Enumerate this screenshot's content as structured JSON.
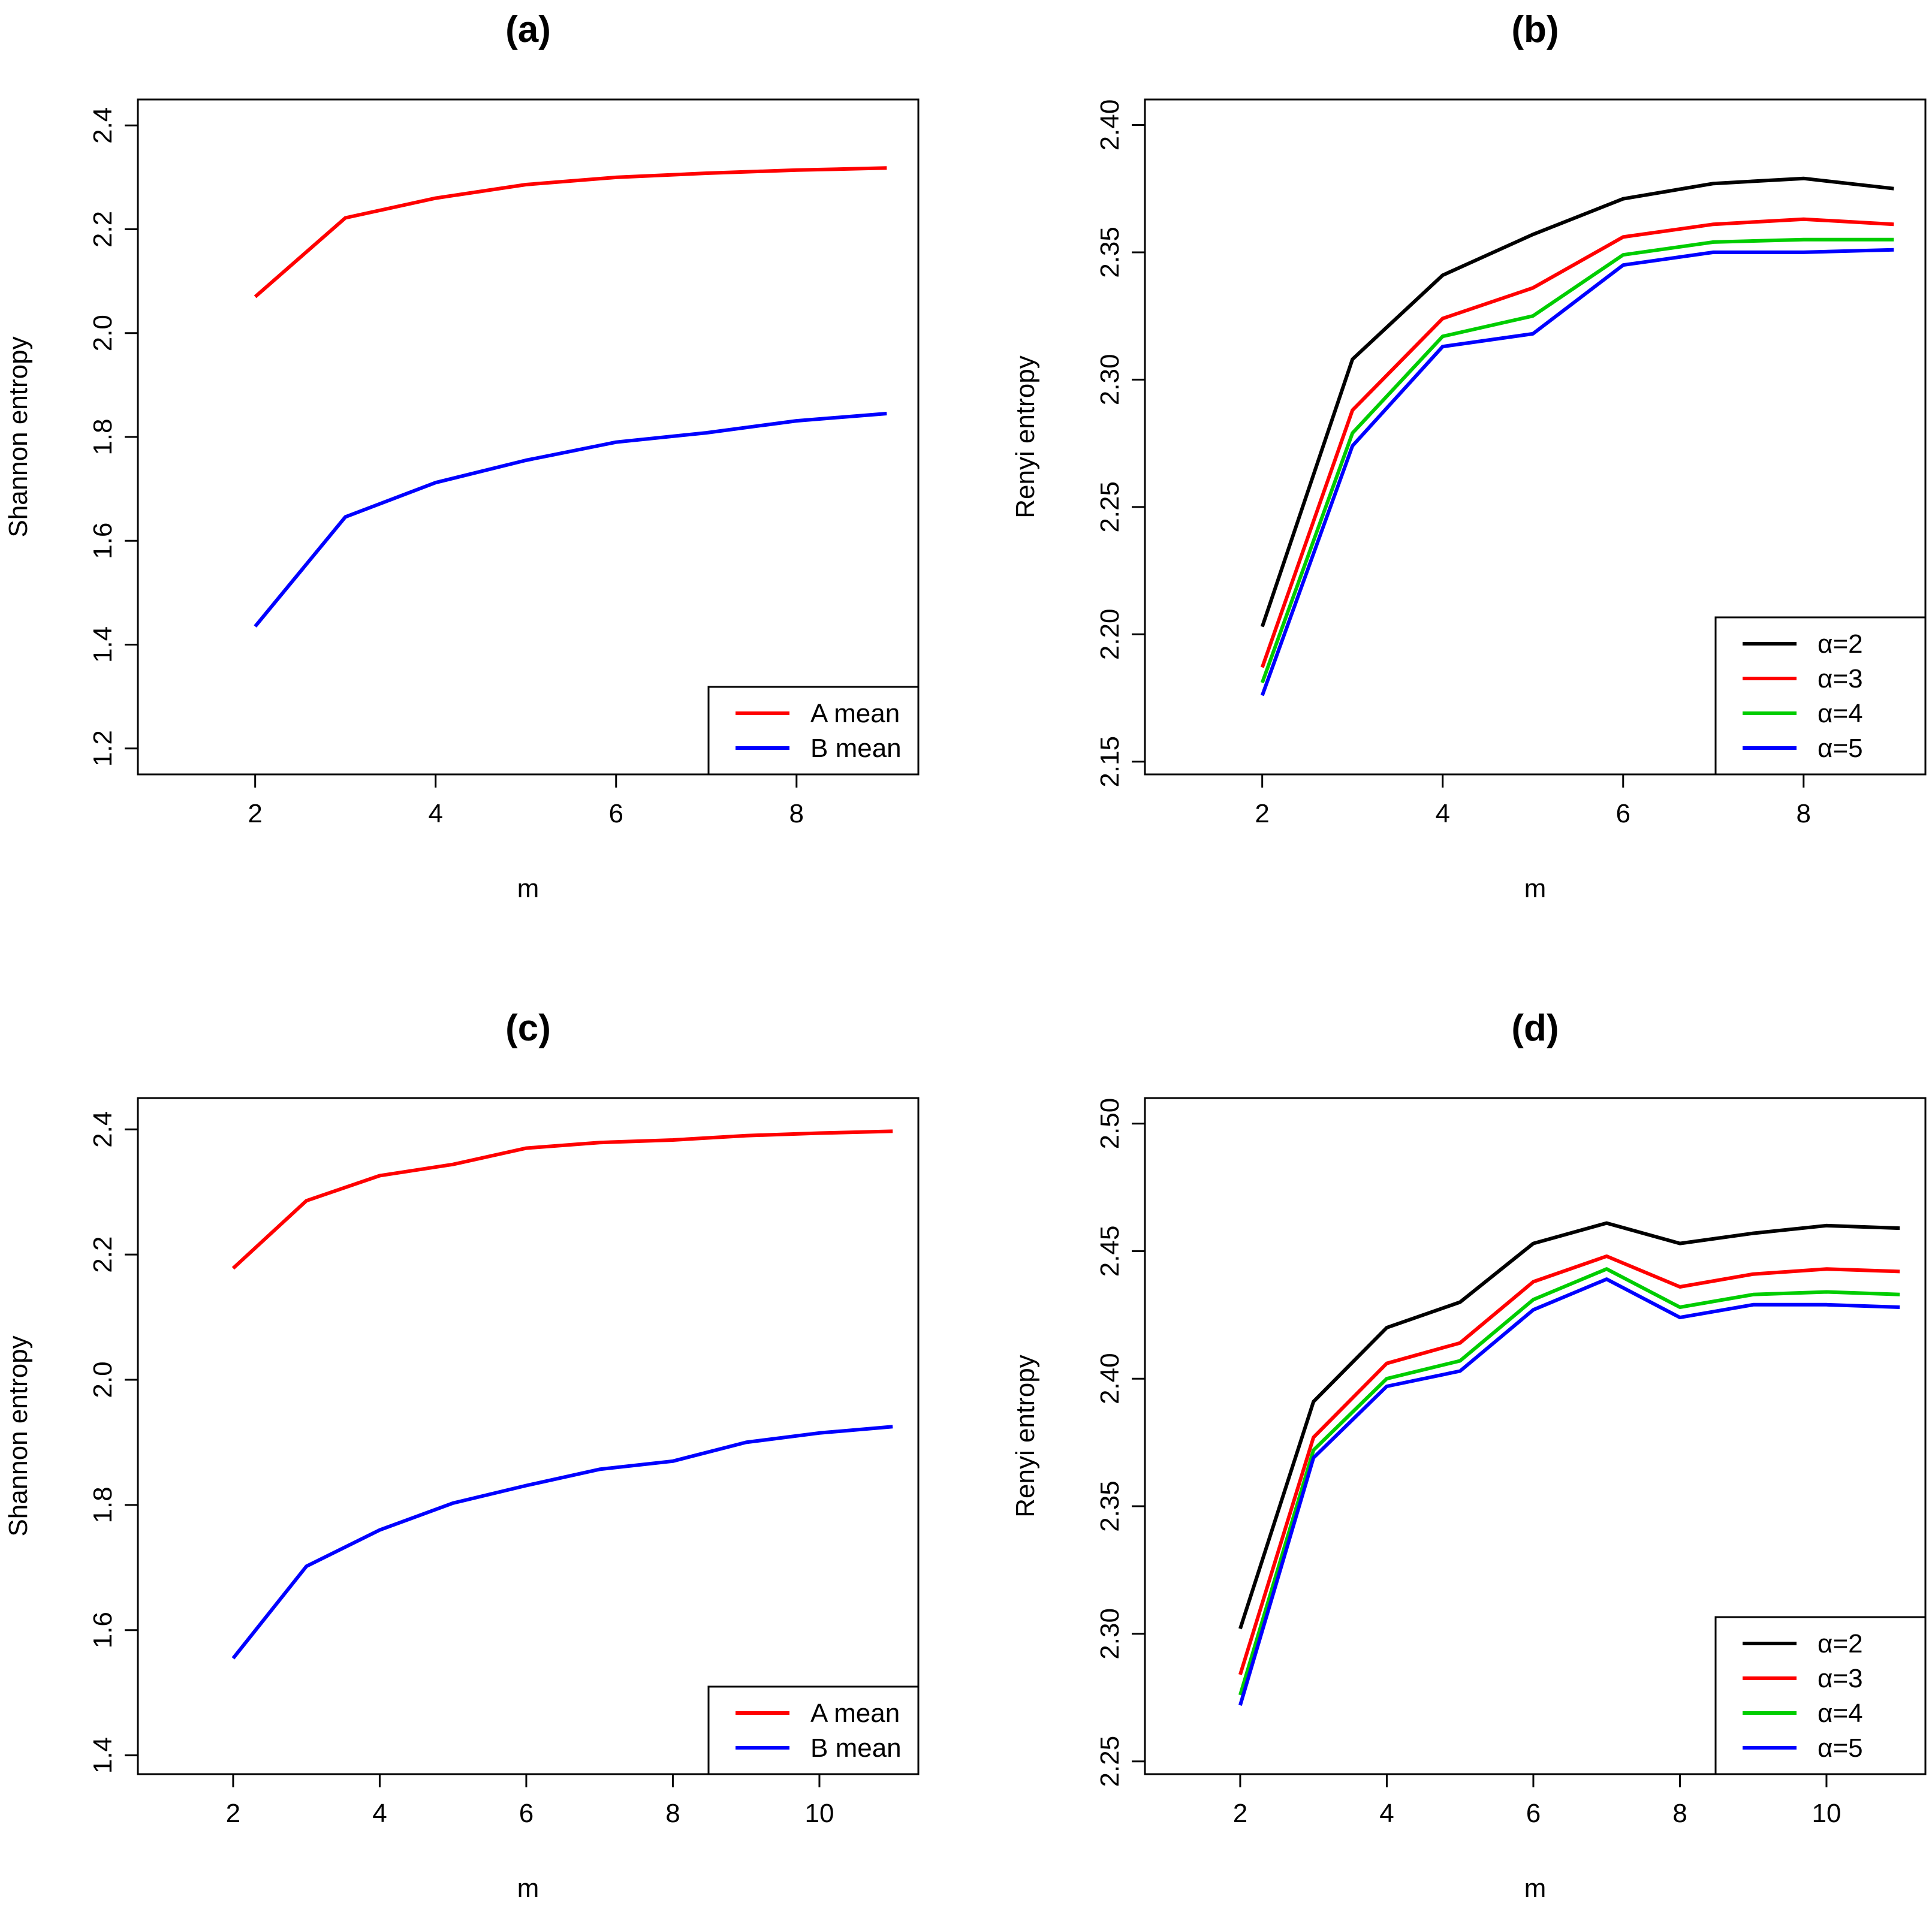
{
  "chart_data": [
    {
      "type": "line",
      "title": "(a)",
      "xlabel": "m",
      "ylabel": "Shannon entropy",
      "xlim": [
        0.7,
        9.35
      ],
      "ylim": [
        1.15,
        2.45
      ],
      "xticks": [
        2,
        4,
        6,
        8
      ],
      "yticks": [
        1.2,
        1.4,
        1.6,
        1.8,
        2.0,
        2.2,
        2.4
      ],
      "ytick_labels": [
        "1.2",
        "1.4",
        "1.6",
        "1.8",
        "2.0",
        "2.2",
        "2.4"
      ],
      "grid": false,
      "legend_position": "bottom-right",
      "x": [
        2,
        3,
        4,
        5,
        6,
        7,
        8,
        9
      ],
      "series": [
        {
          "name": "A mean",
          "color": "#ff0000",
          "values": [
            2.07,
            2.222,
            2.26,
            2.286,
            2.3,
            2.308,
            2.314,
            2.318
          ]
        },
        {
          "name": "B mean",
          "color": "#0000ff",
          "values": [
            1.435,
            1.646,
            1.712,
            1.755,
            1.79,
            1.808,
            1.831,
            1.845
          ]
        }
      ]
    },
    {
      "type": "line",
      "title": "(b)",
      "xlabel": "m",
      "ylabel": "Renyi entropy",
      "xlim": [
        0.7,
        9.35
      ],
      "ylim": [
        2.145,
        2.41
      ],
      "xticks": [
        2,
        4,
        6,
        8
      ],
      "yticks": [
        2.15,
        2.2,
        2.25,
        2.3,
        2.35,
        2.4
      ],
      "ytick_labels": [
        "2.15",
        "2.20",
        "2.25",
        "2.30",
        "2.35",
        "2.40"
      ],
      "grid": false,
      "legend_position": "bottom-right",
      "x": [
        2,
        3,
        4,
        5,
        6,
        7,
        8,
        9
      ],
      "series": [
        {
          "name": "α=2",
          "color": "#000000",
          "values": [
            2.203,
            2.308,
            2.341,
            2.357,
            2.371,
            2.377,
            2.379,
            2.375
          ]
        },
        {
          "name": "α=3",
          "color": "#ff0000",
          "values": [
            2.187,
            2.288,
            2.324,
            2.336,
            2.356,
            2.361,
            2.363,
            2.361
          ]
        },
        {
          "name": "α=4",
          "color": "#00cd00",
          "values": [
            2.181,
            2.279,
            2.317,
            2.325,
            2.349,
            2.354,
            2.355,
            2.355
          ]
        },
        {
          "name": "α=5",
          "color": "#0000ff",
          "values": [
            2.176,
            2.274,
            2.313,
            2.318,
            2.345,
            2.35,
            2.35,
            2.351
          ]
        }
      ]
    },
    {
      "type": "line",
      "title": "(c)",
      "xlabel": "m",
      "ylabel": "Shannon entropy",
      "xlim": [
        0.7,
        11.35
      ],
      "ylim": [
        1.37,
        2.45
      ],
      "xticks": [
        2,
        4,
        6,
        8,
        10
      ],
      "yticks": [
        1.4,
        1.6,
        1.8,
        2.0,
        2.2,
        2.4
      ],
      "ytick_labels": [
        "1.4",
        "1.6",
        "1.8",
        "2.0",
        "2.2",
        "2.4"
      ],
      "grid": false,
      "legend_position": "bottom-right",
      "x": [
        2,
        3,
        4,
        5,
        6,
        7,
        8,
        9,
        10,
        11
      ],
      "series": [
        {
          "name": "A mean",
          "color": "#ff0000",
          "values": [
            2.178,
            2.286,
            2.326,
            2.344,
            2.37,
            2.379,
            2.383,
            2.39,
            2.394,
            2.397
          ]
        },
        {
          "name": "B mean",
          "color": "#0000ff",
          "values": [
            1.555,
            1.702,
            1.76,
            1.803,
            1.831,
            1.857,
            1.87,
            1.9,
            1.915,
            1.925
          ]
        }
      ]
    },
    {
      "type": "line",
      "title": "(d)",
      "xlabel": "m",
      "ylabel": "Renyi entropy",
      "xlim": [
        0.7,
        11.35
      ],
      "ylim": [
        2.245,
        2.51
      ],
      "xticks": [
        2,
        4,
        6,
        8,
        10
      ],
      "yticks": [
        2.25,
        2.3,
        2.35,
        2.4,
        2.45,
        2.5
      ],
      "ytick_labels": [
        "2.25",
        "2.30",
        "2.35",
        "2.40",
        "2.45",
        "2.50"
      ],
      "grid": false,
      "legend_position": "bottom-right",
      "x": [
        2,
        3,
        4,
        5,
        6,
        7,
        8,
        9,
        10,
        11
      ],
      "series": [
        {
          "name": "α=2",
          "color": "#000000",
          "values": [
            2.302,
            2.391,
            2.42,
            2.43,
            2.453,
            2.461,
            2.453,
            2.457,
            2.46,
            2.459
          ]
        },
        {
          "name": "α=3",
          "color": "#ff0000",
          "values": [
            2.284,
            2.377,
            2.406,
            2.414,
            2.438,
            2.448,
            2.436,
            2.441,
            2.443,
            2.442
          ]
        },
        {
          "name": "α=4",
          "color": "#00cd00",
          "values": [
            2.276,
            2.372,
            2.4,
            2.407,
            2.431,
            2.443,
            2.428,
            2.433,
            2.434,
            2.433
          ]
        },
        {
          "name": "α=5",
          "color": "#0000ff",
          "values": [
            2.272,
            2.369,
            2.397,
            2.403,
            2.427,
            2.439,
            2.424,
            2.429,
            2.429,
            2.428
          ]
        }
      ]
    }
  ]
}
